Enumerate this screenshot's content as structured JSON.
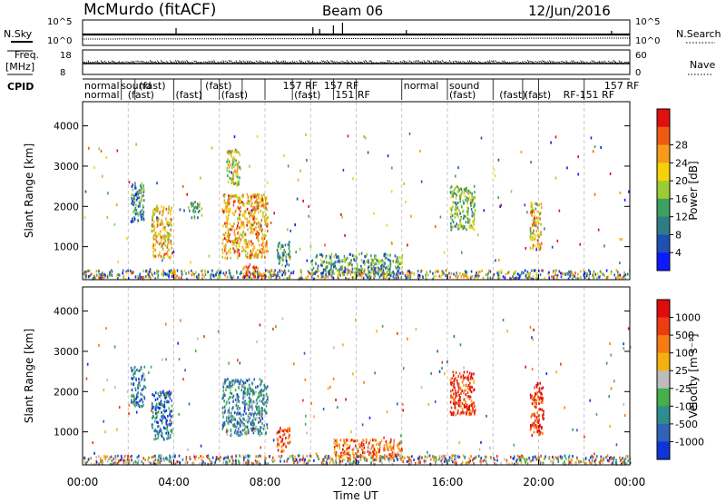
{
  "header": {
    "station": "McMurdo (fitACF)",
    "beam": "Beam 06",
    "date": "12/Jun/2016"
  },
  "strips": {
    "nsky_label": "N.Sky",
    "nsky_ticks": [
      "10^5",
      "10^0"
    ],
    "nsearch_label": "N.Search",
    "nsearch_ticks": [
      "10^5",
      "10^0"
    ],
    "freq_label_1": "Freq.",
    "freq_label_2": "[MHz]",
    "freq_ticks": [
      "18",
      "8"
    ],
    "nave_label": "Nave",
    "nave_ticks": [
      "60",
      "0"
    ],
    "cpid_label": "CPID",
    "cpid_row1": [
      {
        "t": 0.0,
        "label": "normal"
      },
      {
        "t": 1.6,
        "label": "sound"
      },
      {
        "t": 2.4,
        "label": "(fast)"
      },
      {
        "t": 5.3,
        "label": "(fast)"
      },
      {
        "t": 8.7,
        "label": "157 RF"
      },
      {
        "t": 10.5,
        "label": "157 RF"
      },
      {
        "t": 14.0,
        "label": "normal"
      },
      {
        "t": 16.0,
        "label": "sound"
      },
      {
        "t": 22.8,
        "label": "157 RF"
      }
    ],
    "cpid_row2": [
      {
        "t": 0.0,
        "label": "normal"
      },
      {
        "t": 1.9,
        "label": "(fast)"
      },
      {
        "t": 4.0,
        "label": "(fast)"
      },
      {
        "t": 6.0,
        "label": "(fast)"
      },
      {
        "t": 9.2,
        "label": "(fast)"
      },
      {
        "t": 11.0,
        "label": "151 RF"
      },
      {
        "t": 16.0,
        "label": "(fast)"
      },
      {
        "t": 18.2,
        "label": "(fast)"
      },
      {
        "t": 19.3,
        "label": "(fast)"
      },
      {
        "t": 21.0,
        "label": "RF-151 RF"
      }
    ]
  },
  "chart_data": [
    {
      "type": "heatmap",
      "name": "power",
      "ylabel": "Slant Range [km]",
      "xlim": [
        0,
        24
      ],
      "ylim": [
        180,
        4600
      ],
      "yticks": [
        1000,
        2000,
        3000,
        4000
      ],
      "colorbar": {
        "label": "Power [dB]",
        "ticks": [
          "4",
          "8",
          "12",
          "16",
          "20",
          "24",
          "28"
        ],
        "colors": [
          "#0b1aff",
          "#1f4fb5",
          "#2e7d86",
          "#3da060",
          "#9ccc33",
          "#f4d20a",
          "#f79a1a",
          "#ef5a12",
          "#e01010"
        ]
      },
      "clusters": [
        {
          "t0": 2.1,
          "t1": 2.7,
          "r0": 1600,
          "r1": 2600,
          "level": 0.3
        },
        {
          "t0": 3.0,
          "t1": 3.9,
          "r0": 700,
          "r1": 2000,
          "level": 0.65
        },
        {
          "t0": 4.6,
          "t1": 5.2,
          "r0": 1700,
          "r1": 2100,
          "level": 0.35
        },
        {
          "t0": 6.1,
          "t1": 8.1,
          "r0": 700,
          "r1": 2300,
          "level": 0.7
        },
        {
          "t0": 6.3,
          "t1": 6.9,
          "r0": 2500,
          "r1": 3400,
          "level": 0.55
        },
        {
          "t0": 7.0,
          "t1": 7.9,
          "r0": 200,
          "r1": 500,
          "level": 0.9
        },
        {
          "t0": 8.5,
          "t1": 9.1,
          "r0": 500,
          "r1": 1100,
          "level": 0.3
        },
        {
          "t0": 10.0,
          "t1": 14.0,
          "r0": 300,
          "r1": 800,
          "level": 0.35
        },
        {
          "t0": 16.1,
          "t1": 17.2,
          "r0": 1400,
          "r1": 2500,
          "level": 0.45
        },
        {
          "t0": 19.6,
          "t1": 20.1,
          "r0": 900,
          "r1": 2100,
          "level": 0.6
        },
        {
          "t0": 0.0,
          "t1": 24.0,
          "r0": 180,
          "r1": 400,
          "level": 0.25
        }
      ]
    },
    {
      "type": "heatmap",
      "name": "velocity",
      "ylabel": "Slant Range [km]",
      "xlabel": "Time UT",
      "xlim": [
        0,
        24
      ],
      "ylim": [
        180,
        4600
      ],
      "yticks": [
        1000,
        2000,
        3000,
        4000
      ],
      "xticks": [
        "00:00",
        "04:00",
        "08:00",
        "12:00",
        "16:00",
        "20:00",
        "00:00"
      ],
      "colorbar": {
        "label": "Velocity [m s⁻¹]",
        "ticks": [
          "1000",
          "500",
          "100",
          "25",
          "-25",
          "-100",
          "-500",
          "-1000"
        ],
        "colors": [
          "#1034d8",
          "#2e63b8",
          "#2e8e8e",
          "#45b04a",
          "#bcbcbc",
          "#f5b010",
          "#f77a12",
          "#ec3c10",
          "#e00c0c"
        ]
      },
      "clusters": [
        {
          "t0": 2.1,
          "t1": 2.7,
          "r0": 1600,
          "r1": 2600,
          "level": 0.25
        },
        {
          "t0": 3.0,
          "t1": 3.9,
          "r0": 800,
          "r1": 2000,
          "level": 0.2
        },
        {
          "t0": 6.1,
          "t1": 8.1,
          "r0": 900,
          "r1": 2300,
          "level": 0.3
        },
        {
          "t0": 8.5,
          "t1": 9.1,
          "r0": 500,
          "r1": 1100,
          "level": 0.8
        },
        {
          "t0": 11.0,
          "t1": 14.0,
          "r0": 300,
          "r1": 800,
          "level": 0.75
        },
        {
          "t0": 16.1,
          "t1": 17.2,
          "r0": 1400,
          "r1": 2500,
          "level": 0.85
        },
        {
          "t0": 19.6,
          "t1": 20.2,
          "r0": 900,
          "r1": 2200,
          "level": 0.88
        },
        {
          "t0": 0.0,
          "t1": 24.0,
          "r0": 180,
          "r1": 400,
          "level": 0.45
        }
      ]
    }
  ]
}
